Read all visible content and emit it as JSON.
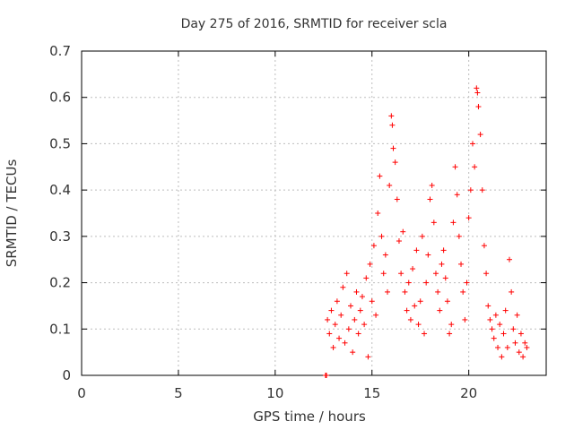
{
  "chart_data": {
    "type": "scatter",
    "title": "Day 275 of 2016, SRMTID for receiver scla",
    "xlabel": "GPS time / hours",
    "ylabel": "SRMTID / TECUs",
    "xlim": [
      0,
      24
    ],
    "ylim": [
      0,
      0.7
    ],
    "x_ticks": [
      "0",
      "5",
      "10",
      "15",
      "20"
    ],
    "y_ticks": [
      "0",
      "0.1",
      "0.2",
      "0.3",
      "0.4",
      "0.5",
      "0.6",
      "0.7"
    ],
    "grid": true,
    "marker": "+",
    "marker_color": "#ff0000",
    "series": [
      {
        "name": "SRMTID",
        "points": [
          [
            12.6,
            0.0
          ],
          [
            12.65,
            0.0
          ],
          [
            12.7,
            0.12
          ],
          [
            12.8,
            0.09
          ],
          [
            12.9,
            0.14
          ],
          [
            13.0,
            0.06
          ],
          [
            13.1,
            0.11
          ],
          [
            13.2,
            0.16
          ],
          [
            13.3,
            0.08
          ],
          [
            13.4,
            0.13
          ],
          [
            13.5,
            0.19
          ],
          [
            13.6,
            0.07
          ],
          [
            13.7,
            0.22
          ],
          [
            13.8,
            0.1
          ],
          [
            13.9,
            0.15
          ],
          [
            14.0,
            0.05
          ],
          [
            14.1,
            0.12
          ],
          [
            14.2,
            0.18
          ],
          [
            14.3,
            0.09
          ],
          [
            14.4,
            0.14
          ],
          [
            14.5,
            0.17
          ],
          [
            14.6,
            0.11
          ],
          [
            14.7,
            0.21
          ],
          [
            14.8,
            0.04
          ],
          [
            14.9,
            0.24
          ],
          [
            15.0,
            0.16
          ],
          [
            15.1,
            0.28
          ],
          [
            15.2,
            0.13
          ],
          [
            15.3,
            0.35
          ],
          [
            15.4,
            0.43
          ],
          [
            15.5,
            0.3
          ],
          [
            15.6,
            0.22
          ],
          [
            15.7,
            0.26
          ],
          [
            15.8,
            0.18
          ],
          [
            15.9,
            0.41
          ],
          [
            16.0,
            0.56
          ],
          [
            16.05,
            0.54
          ],
          [
            16.1,
            0.49
          ],
          [
            16.2,
            0.46
          ],
          [
            16.3,
            0.38
          ],
          [
            16.4,
            0.29
          ],
          [
            16.5,
            0.22
          ],
          [
            16.6,
            0.31
          ],
          [
            16.7,
            0.18
          ],
          [
            16.8,
            0.14
          ],
          [
            16.9,
            0.2
          ],
          [
            17.0,
            0.12
          ],
          [
            17.1,
            0.23
          ],
          [
            17.2,
            0.15
          ],
          [
            17.3,
            0.27
          ],
          [
            17.4,
            0.11
          ],
          [
            17.5,
            0.16
          ],
          [
            17.6,
            0.3
          ],
          [
            17.7,
            0.09
          ],
          [
            17.8,
            0.2
          ],
          [
            17.9,
            0.26
          ],
          [
            18.0,
            0.38
          ],
          [
            18.1,
            0.41
          ],
          [
            18.2,
            0.33
          ],
          [
            18.3,
            0.22
          ],
          [
            18.4,
            0.18
          ],
          [
            18.5,
            0.14
          ],
          [
            18.6,
            0.24
          ],
          [
            18.7,
            0.27
          ],
          [
            18.8,
            0.21
          ],
          [
            18.9,
            0.16
          ],
          [
            19.0,
            0.09
          ],
          [
            19.1,
            0.11
          ],
          [
            19.2,
            0.33
          ],
          [
            19.3,
            0.45
          ],
          [
            19.4,
            0.39
          ],
          [
            19.5,
            0.3
          ],
          [
            19.6,
            0.24
          ],
          [
            19.7,
            0.18
          ],
          [
            19.8,
            0.12
          ],
          [
            19.9,
            0.2
          ],
          [
            20.0,
            0.34
          ],
          [
            20.1,
            0.4
          ],
          [
            20.2,
            0.5
          ],
          [
            20.3,
            0.45
          ],
          [
            20.4,
            0.62
          ],
          [
            20.45,
            0.61
          ],
          [
            20.5,
            0.58
          ],
          [
            20.6,
            0.52
          ],
          [
            20.7,
            0.4
          ],
          [
            20.8,
            0.28
          ],
          [
            20.9,
            0.22
          ],
          [
            21.0,
            0.15
          ],
          [
            21.1,
            0.12
          ],
          [
            21.2,
            0.1
          ],
          [
            21.3,
            0.08
          ],
          [
            21.4,
            0.13
          ],
          [
            21.5,
            0.06
          ],
          [
            21.6,
            0.11
          ],
          [
            21.7,
            0.04
          ],
          [
            21.8,
            0.09
          ],
          [
            21.9,
            0.14
          ],
          [
            22.0,
            0.06
          ],
          [
            22.1,
            0.25
          ],
          [
            22.2,
            0.18
          ],
          [
            22.3,
            0.1
          ],
          [
            22.4,
            0.07
          ],
          [
            22.5,
            0.13
          ],
          [
            22.6,
            0.05
          ],
          [
            22.7,
            0.09
          ],
          [
            22.8,
            0.04
          ],
          [
            22.9,
            0.07
          ],
          [
            23.0,
            0.06
          ]
        ]
      }
    ]
  }
}
